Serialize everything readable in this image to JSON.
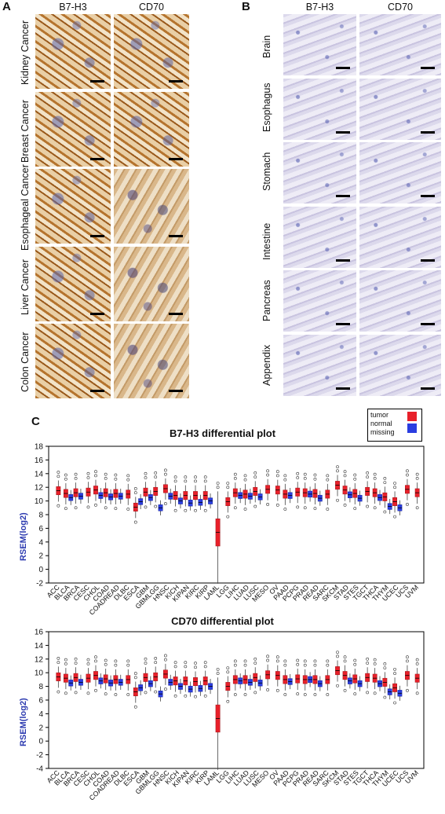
{
  "panelA": {
    "label": "A",
    "columns": [
      "B7-H3",
      "CD70"
    ],
    "rows": [
      "Kidney Cancer",
      "Breast Cancer",
      "Esophageal Cancer",
      "Liver Cancer",
      "Colon Cancer"
    ]
  },
  "panelB": {
    "label": "B",
    "columns": [
      "B7-H3",
      "CD70"
    ],
    "rows": [
      "Brain",
      "Esophagus",
      "Stomach",
      "Intestine",
      "Pancreas",
      "Appendix"
    ]
  },
  "panelC": {
    "label": "C",
    "legend": {
      "items": [
        "tumor",
        "normal",
        "missing"
      ],
      "colors": [
        "#e8202a",
        "#2a3de0"
      ]
    }
  },
  "colors": {
    "tumor": "#e8202a",
    "normal": "#2a3de0",
    "ylabel": "#2d3bb0",
    "stain_dark": "#a0621f",
    "hema": "#4a55a8"
  },
  "chart_data": [
    {
      "type": "box",
      "title": "B7-H3 differential plot",
      "ylabel": "RSEM(log2)",
      "ylim": [
        -2,
        18
      ],
      "yticks": [
        -2,
        0,
        2,
        4,
        6,
        8,
        10,
        12,
        14,
        16,
        18
      ],
      "categories": [
        "ACC",
        "BLCA",
        "BRCA",
        "CESC",
        "CHOL",
        "COAD",
        "COADREAD",
        "DLBC",
        "ESCA",
        "GBM",
        "GBMLGG",
        "HNSC",
        "KICH",
        "KIPAN",
        "KIRC",
        "KIRP",
        "LAML",
        "LGG",
        "LIHC",
        "LUAD",
        "LUSC",
        "MESO",
        "OV",
        "PAAD",
        "PCPG",
        "PRAD",
        "READ",
        "SARC",
        "SKCM",
        "STAD",
        "STES",
        "TGCT",
        "THCA",
        "THYM",
        "UCEC",
        "UCS",
        "UVM"
      ],
      "series": [
        {
          "name": "tumor",
          "medians": [
            11.5,
            11.1,
            11.2,
            11.3,
            11.6,
            11.2,
            11.1,
            11.0,
            9.1,
            11.3,
            11.4,
            11.8,
            10.8,
            10.8,
            10.8,
            10.8,
            5.4,
            9.9,
            11.2,
            11.0,
            11.4,
            11.7,
            11.6,
            11.0,
            11.3,
            11.2,
            11.1,
            11.0,
            12.3,
            11.6,
            11.1,
            11.4,
            11.2,
            10.6,
            9.9,
            11.7,
            11.2
          ]
        },
        {
          "name": "normal",
          "medians": [
            null,
            10.5,
            10.7,
            null,
            10.8,
            10.6,
            10.7,
            null,
            9.9,
            10.5,
            9.0,
            10.7,
            10.0,
            9.7,
            9.8,
            10.0,
            null,
            null,
            10.8,
            10.7,
            10.6,
            null,
            null,
            10.8,
            null,
            11.0,
            10.4,
            null,
            null,
            10.9,
            10.4,
            null,
            10.5,
            9.2,
            9.0,
            null,
            null
          ]
        }
      ]
    },
    {
      "type": "box",
      "title": "CD70 differential plot",
      "ylabel": "RSEM(log2)",
      "ylim": [
        -4,
        16
      ],
      "yticks": [
        -4,
        -2,
        0,
        2,
        4,
        6,
        8,
        10,
        12,
        14,
        16
      ],
      "categories": [
        "ACC",
        "BLCA",
        "BRCA",
        "CESC",
        "CHOL",
        "COAD",
        "COADREAD",
        "DLBC",
        "ESCA",
        "GBM",
        "GBMLGG",
        "HNSC",
        "KICH",
        "KIPAN",
        "KIRC",
        "KIRP",
        "LAML",
        "LGG",
        "LIHC",
        "LUAD",
        "LUSC",
        "MESO",
        "OV",
        "PAAD",
        "PCPG",
        "PRAD",
        "READ",
        "SARC",
        "SKCM",
        "STAD",
        "STES",
        "TGCT",
        "THCA",
        "THYM",
        "UCEC",
        "UCS",
        "UVM"
      ],
      "series": [
        {
          "name": "tumor",
          "medians": [
            9.4,
            9.2,
            9.3,
            9.2,
            9.6,
            9.1,
            9.0,
            9.0,
            7.2,
            9.3,
            9.4,
            9.8,
            8.8,
            8.8,
            8.7,
            8.8,
            3.3,
            8.0,
            9.0,
            9.0,
            9.3,
            9.7,
            9.6,
            9.0,
            9.1,
            9.0,
            9.0,
            9.0,
            10.3,
            9.6,
            9.1,
            9.3,
            9.2,
            8.6,
            7.8,
            9.6,
            9.2
          ]
        },
        {
          "name": "normal",
          "medians": [
            null,
            8.5,
            8.6,
            null,
            8.8,
            8.5,
            8.6,
            null,
            7.8,
            8.4,
            6.9,
            8.6,
            8.0,
            7.6,
            7.7,
            8.0,
            null,
            null,
            8.8,
            8.6,
            8.5,
            null,
            null,
            8.7,
            null,
            9.0,
            8.4,
            null,
            null,
            8.8,
            8.4,
            null,
            8.4,
            7.2,
            7.0,
            null,
            null
          ]
        }
      ]
    }
  ]
}
